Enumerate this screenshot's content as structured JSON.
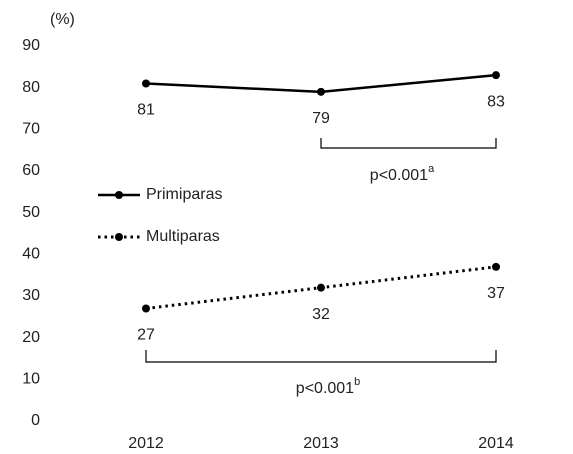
{
  "chart_data": {
    "type": "line",
    "y_unit_label": "(%)",
    "categories": [
      "2012",
      "2013",
      "2014"
    ],
    "series": [
      {
        "name": "Primiparas",
        "color": "#000000",
        "style": "solid",
        "values": [
          81,
          79,
          83
        ]
      },
      {
        "name": "Multiparas",
        "color": "#000000",
        "style": "dotted",
        "values": [
          27,
          32,
          37
        ]
      }
    ],
    "ylim": [
      0,
      90
    ],
    "yticks": [
      0,
      10,
      20,
      30,
      40,
      50,
      60,
      70,
      80,
      90
    ],
    "annotations": [
      {
        "text": "p<0.001",
        "sup": "a"
      },
      {
        "text": "p<0.001",
        "sup": "b"
      }
    ]
  }
}
